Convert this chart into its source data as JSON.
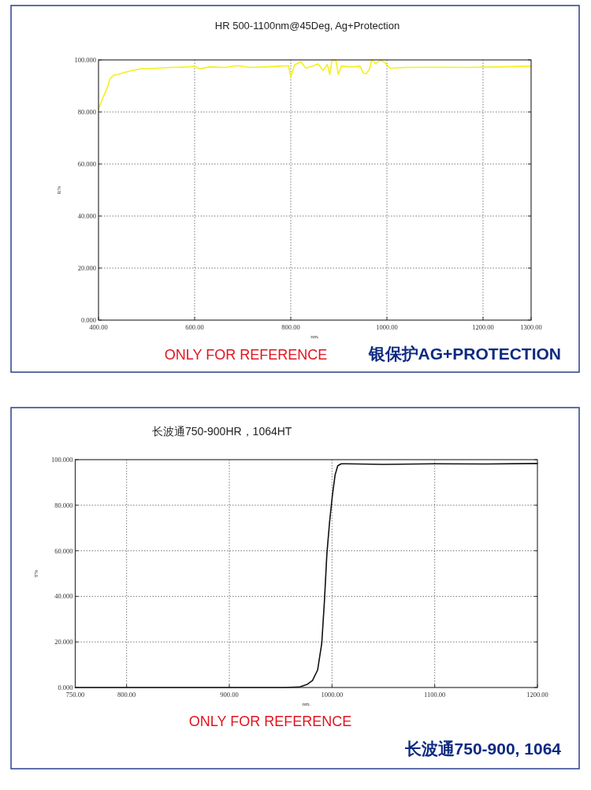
{
  "chart_data": [
    {
      "type": "line",
      "title": "HR 500-1100nm@45Deg, Ag+Protection",
      "xlabel": "nm.",
      "ylabel": "R%",
      "xlim": [
        400,
        1300
      ],
      "ylim": [
        0,
        100
      ],
      "xticks": [
        {
          "value": 400,
          "label": "400.00"
        },
        {
          "value": 600,
          "label": "600.00"
        },
        {
          "value": 800,
          "label": "800.00"
        },
        {
          "value": 1000,
          "label": "1000.00"
        },
        {
          "value": 1200,
          "label": "1200.00"
        },
        {
          "value": 1300,
          "label": "1300.00"
        }
      ],
      "yticks": [
        {
          "value": 0,
          "label": "0.000"
        },
        {
          "value": 20,
          "label": "20.000"
        },
        {
          "value": 40,
          "label": "40.000"
        },
        {
          "value": 60,
          "label": "60.000"
        },
        {
          "value": 80,
          "label": "80.000"
        },
        {
          "value": 100,
          "label": "100.000"
        }
      ],
      "grid": true,
      "series": [
        {
          "color": "#f5f01e",
          "x": [
            400,
            408,
            418,
            424,
            432,
            440,
            456,
            469,
            489,
            521,
            553,
            586,
            600,
            611,
            631,
            663,
            689,
            715,
            747,
            779,
            795,
            800,
            808,
            821,
            831,
            844,
            857,
            867,
            876,
            881,
            886,
            894,
            899,
            905,
            928,
            944,
            951,
            957,
            964,
            968,
            977,
            986,
            996,
            1006,
            1038,
            1103,
            1167,
            1232,
            1300
          ],
          "values": [
            81.2,
            85.0,
            89.2,
            92.8,
            94.1,
            94.4,
            95.3,
            95.9,
            96.6,
            96.8,
            97.1,
            97.3,
            97.6,
            96.6,
            97.3,
            97.1,
            97.8,
            97.1,
            97.3,
            97.6,
            97.8,
            93.5,
            98.1,
            99.3,
            96.8,
            97.6,
            98.5,
            95.9,
            98.3,
            94.4,
            100,
            99.8,
            94.4,
            97.6,
            97.3,
            97.6,
            94.9,
            94.7,
            96.5,
            100,
            98.5,
            100,
            98.9,
            96.8,
            97.1,
            97.2,
            97.1,
            97.3,
            97.6
          ]
        }
      ],
      "annotations": [
        "ONLY FOR REFERENCE",
        "银保护AG+PROTECTION"
      ]
    },
    {
      "type": "line",
      "title": "长波通750-900HR，1064HT",
      "xlabel": "nm.",
      "ylabel": "T%",
      "xlim": [
        750,
        1200
      ],
      "ylim": [
        0,
        100
      ],
      "xticks": [
        {
          "value": 750,
          "label": "750.00"
        },
        {
          "value": 800,
          "label": "800.00"
        },
        {
          "value": 900,
          "label": "900.00"
        },
        {
          "value": 1000,
          "label": "1000.00"
        },
        {
          "value": 1100,
          "label": "1100.00"
        },
        {
          "value": 1200,
          "label": "1200.00"
        }
      ],
      "yticks": [
        {
          "value": 0,
          "label": "0.000"
        },
        {
          "value": 20,
          "label": "20.000"
        },
        {
          "value": 40,
          "label": "40.000"
        },
        {
          "value": 60,
          "label": "60.000"
        },
        {
          "value": 80,
          "label": "80.000"
        },
        {
          "value": 100,
          "label": "100.000"
        }
      ],
      "grid": true,
      "series": [
        {
          "color": "#111111",
          "x": [
            750,
            850,
            953,
            968,
            976,
            981,
            986,
            990,
            992.6,
            995,
            997.6,
            1000.3,
            1003,
            1005.6,
            1009,
            1014,
            1050,
            1100,
            1150,
            1200
          ],
          "values": [
            0,
            0,
            0,
            0.2,
            1.4,
            3.1,
            7.7,
            19.3,
            37.8,
            58.6,
            72.5,
            84.0,
            93.3,
            97.3,
            98.2,
            98.2,
            97.9,
            98.2,
            98.1,
            98.3
          ]
        }
      ],
      "annotations": [
        "ONLY FOR REFERENCE",
        "长波通750-900, 1064"
      ]
    }
  ]
}
